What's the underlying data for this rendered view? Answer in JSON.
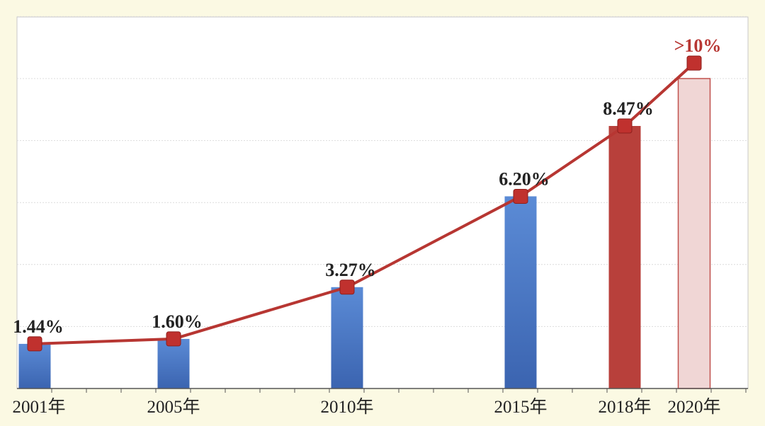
{
  "chart_data": {
    "type": "bar",
    "title": "",
    "xlabel": "",
    "ylabel": "",
    "ylim": [
      0,
      12
    ],
    "grid": true,
    "categories": [
      "2001年",
      "2005年",
      "2010年",
      "2015年",
      "2018年",
      "2020年"
    ],
    "values": [
      1.44,
      1.6,
      3.27,
      6.2,
      8.47,
      10
    ],
    "data_labels": [
      "1.44%",
      "1.60%",
      "3.27%",
      "6.20%",
      "8.47%",
      ">10%"
    ],
    "line_values": [
      1.44,
      1.6,
      3.27,
      6.2,
      8.47,
      10.5
    ],
    "colors": {
      "bar_blue_top": "#5b8bd6",
      "bar_blue_bottom": "#3b64b0",
      "bar_red": "#b8403b",
      "bar_target_fill": "#f0d6d5",
      "bar_target_stroke": "#c0504d",
      "line": "#b73632",
      "marker": "#c0312e",
      "highlight_label": "#b73632",
      "plot_bg": "#ffffff",
      "page_bg": "#fbf9e3"
    }
  }
}
